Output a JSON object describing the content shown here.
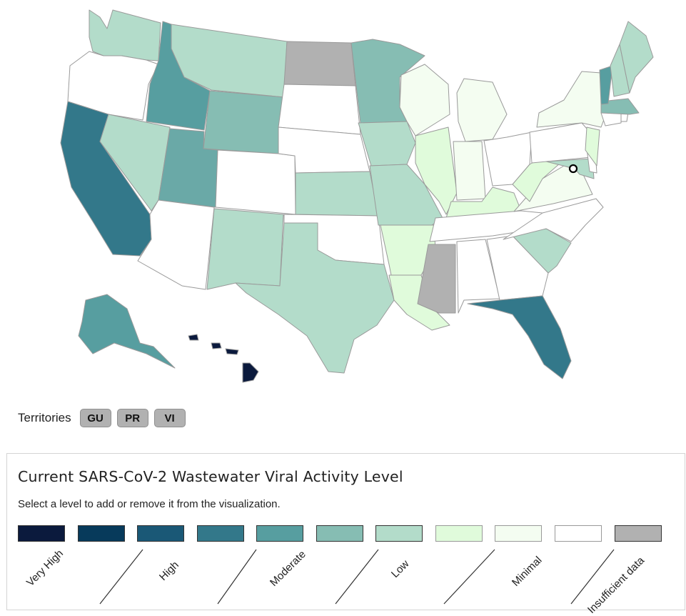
{
  "map": {
    "marker": "circle-marker",
    "states": [
      {
        "id": "WA",
        "level": "Low",
        "fill": "#b3dcca"
      },
      {
        "id": "OR",
        "level": "Minimal",
        "fill": "#ffffff"
      },
      {
        "id": "CA",
        "level": "High",
        "fill": "#33788a"
      },
      {
        "id": "ID",
        "level": "Moderate",
        "fill": "#579ea0"
      },
      {
        "id": "NV",
        "level": "Low",
        "fill": "#b3dcca"
      },
      {
        "id": "MT",
        "level": "Low",
        "fill": "#b3dcca"
      },
      {
        "id": "WY",
        "level": "Moderate",
        "fill": "#86bdb3"
      },
      {
        "id": "UT",
        "level": "Moderate",
        "fill": "#6aa9a7"
      },
      {
        "id": "AZ",
        "level": "Minimal",
        "fill": "#ffffff"
      },
      {
        "id": "CO",
        "level": "Minimal",
        "fill": "#ffffff"
      },
      {
        "id": "NM",
        "level": "Low",
        "fill": "#b3dcca"
      },
      {
        "id": "ND",
        "level": "Insufficient data",
        "fill": "#b1b1b1"
      },
      {
        "id": "SD",
        "level": "Minimal",
        "fill": "#ffffff"
      },
      {
        "id": "NE",
        "level": "Minimal",
        "fill": "#ffffff"
      },
      {
        "id": "KS",
        "level": "Low",
        "fill": "#b3dcca"
      },
      {
        "id": "OK",
        "level": "Minimal",
        "fill": "#ffffff"
      },
      {
        "id": "TX",
        "level": "Low",
        "fill": "#b3dcca"
      },
      {
        "id": "MN",
        "level": "Moderate",
        "fill": "#86bdb3"
      },
      {
        "id": "IA",
        "level": "Low",
        "fill": "#b3dcca"
      },
      {
        "id": "MO",
        "level": "Low",
        "fill": "#b3dcca"
      },
      {
        "id": "AR",
        "level": "Minimal",
        "fill": "#e0fbdb"
      },
      {
        "id": "LA",
        "level": "Minimal",
        "fill": "#e0fbdb"
      },
      {
        "id": "WI",
        "level": "Minimal",
        "fill": "#f4fdf1"
      },
      {
        "id": "IL",
        "level": "Minimal",
        "fill": "#e0fbdb"
      },
      {
        "id": "MS",
        "level": "Insufficient data",
        "fill": "#b1b1b1"
      },
      {
        "id": "MI",
        "level": "Minimal",
        "fill": "#f4fdf1"
      },
      {
        "id": "IN",
        "level": "Minimal",
        "fill": "#f4fdf1"
      },
      {
        "id": "KY",
        "level": "Minimal",
        "fill": "#e0fbdb"
      },
      {
        "id": "TN",
        "level": "Minimal",
        "fill": "#ffffff"
      },
      {
        "id": "AL",
        "level": "Minimal",
        "fill": "#ffffff"
      },
      {
        "id": "OH",
        "level": "Minimal",
        "fill": "#ffffff"
      },
      {
        "id": "GA",
        "level": "Minimal",
        "fill": "#ffffff"
      },
      {
        "id": "FL",
        "level": "High",
        "fill": "#33788a"
      },
      {
        "id": "SC",
        "level": "Low",
        "fill": "#b3dcca"
      },
      {
        "id": "NC",
        "level": "Minimal",
        "fill": "#ffffff"
      },
      {
        "id": "VA",
        "level": "Minimal",
        "fill": "#f4fdf1"
      },
      {
        "id": "WV",
        "level": "Minimal",
        "fill": "#e0fbdb"
      },
      {
        "id": "PA",
        "level": "Minimal",
        "fill": "#ffffff"
      },
      {
        "id": "MD",
        "level": "Low",
        "fill": "#b3dcca"
      },
      {
        "id": "DE",
        "level": "Minimal",
        "fill": "#ffffff"
      },
      {
        "id": "NJ",
        "level": "Minimal",
        "fill": "#e0fbdb"
      },
      {
        "id": "NY",
        "level": "Minimal",
        "fill": "#f4fdf1"
      },
      {
        "id": "CT",
        "level": "Minimal",
        "fill": "#ffffff"
      },
      {
        "id": "RI",
        "level": "Minimal",
        "fill": "#ffffff"
      },
      {
        "id": "MA",
        "level": "Moderate",
        "fill": "#86bdb3"
      },
      {
        "id": "VT",
        "level": "Moderate",
        "fill": "#579ea0"
      },
      {
        "id": "NH",
        "level": "Low",
        "fill": "#b3dcca"
      },
      {
        "id": "ME",
        "level": "Low",
        "fill": "#b3dcca"
      },
      {
        "id": "AK",
        "level": "Moderate",
        "fill": "#579ea0"
      },
      {
        "id": "HI",
        "level": "Very High",
        "fill": "#0b1a3d"
      }
    ]
  },
  "territories": {
    "label": "Territories",
    "items": [
      {
        "code": "GU",
        "fill": "#b1b1b1"
      },
      {
        "code": "PR",
        "fill": "#b1b1b1"
      },
      {
        "code": "VI",
        "fill": "#b1b1b1"
      }
    ]
  },
  "legend": {
    "title": "Current SARS-CoV-2 Wastewater Viral Activity Level",
    "subtitle": "Select a level to add or remove it from the visualization.",
    "swatches": [
      "#0b1a3d",
      "#073a5b",
      "#1a5876",
      "#33788a",
      "#579ea0",
      "#86bdb3",
      "#b3dcca",
      "#e0fbdb",
      "#f4fdf1",
      "#ffffff",
      "#b1b1b1"
    ],
    "levels": [
      "Very High",
      "High",
      "Moderate",
      "Low",
      "Minimal",
      "Insufficient data"
    ]
  }
}
